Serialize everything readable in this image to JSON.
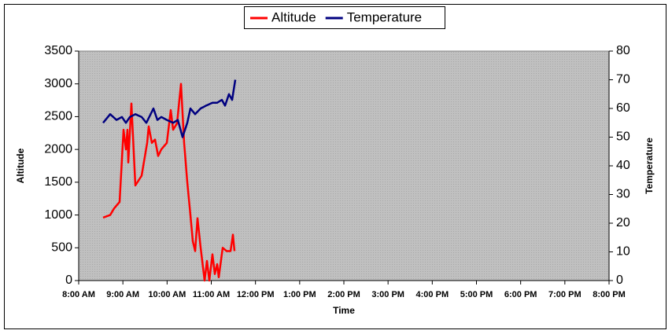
{
  "chart_data": {
    "type": "line",
    "x_label": "Time",
    "y_label": "Altitude",
    "y2_label": "Temperature",
    "xlim": [
      8,
      20
    ],
    "xticks": [
      {
        "value": 8,
        "label": "8:00 AM"
      },
      {
        "value": 9,
        "label": "9:00 AM"
      },
      {
        "value": 10,
        "label": "10:00 AM"
      },
      {
        "value": 11,
        "label": "11:00 AM"
      },
      {
        "value": 12,
        "label": "12:00 PM"
      },
      {
        "value": 13,
        "label": "1:00 PM"
      },
      {
        "value": 14,
        "label": "2:00 PM"
      },
      {
        "value": 15,
        "label": "3:00 PM"
      },
      {
        "value": 16,
        "label": "4:00 PM"
      },
      {
        "value": 17,
        "label": "5:00 PM"
      },
      {
        "value": 18,
        "label": "6:00 PM"
      },
      {
        "value": 19,
        "label": "7:00 PM"
      },
      {
        "value": 20,
        "label": "8:00 PM"
      }
    ],
    "ylim": [
      0,
      3500
    ],
    "yticks": [
      0,
      500,
      1000,
      1500,
      2000,
      2500,
      3000,
      3500
    ],
    "y2lim": [
      0,
      80
    ],
    "y2ticks": [
      0,
      10,
      20,
      30,
      40,
      50,
      60,
      70,
      80
    ],
    "legend": "top",
    "series": [
      {
        "name": "Altitude",
        "color": "#ff0000",
        "x": [
          8.552,
          8.712,
          8.801,
          8.926,
          9.015,
          9.068,
          9.104,
          9.122,
          9.193,
          9.282,
          9.424,
          9.549,
          9.584,
          9.656,
          9.727,
          9.798,
          9.869,
          9.994,
          10.083,
          10.136,
          10.225,
          10.314,
          10.386,
          10.457,
          10.528,
          10.581,
          10.635,
          10.688,
          10.759,
          10.848,
          10.902,
          10.955,
          11.027,
          11.08,
          11.133,
          11.169,
          11.258,
          11.347,
          11.436,
          11.489,
          11.525
        ],
        "values": [
          960,
          1000,
          1100,
          1200,
          2300,
          2000,
          2300,
          1800,
          2700,
          1450,
          1600,
          2100,
          2350,
          2100,
          2150,
          1900,
          2000,
          2100,
          2600,
          2300,
          2400,
          3000,
          2100,
          1500,
          1000,
          600,
          450,
          950,
          500,
          0,
          300,
          0,
          400,
          100,
          250,
          50,
          500,
          450,
          450,
          700,
          450
        ]
      },
      {
        "name": "Temperature",
        "color": "#000080",
        "axis": "y2",
        "x": [
          8.552,
          8.712,
          8.855,
          8.979,
          9.068,
          9.157,
          9.282,
          9.424,
          9.531,
          9.691,
          9.78,
          9.869,
          9.994,
          10.136,
          10.243,
          10.35,
          10.457,
          10.528,
          10.635,
          10.759,
          10.884,
          11.027,
          11.133,
          11.24,
          11.311,
          11.4,
          11.472,
          11.543
        ],
        "values": [
          55,
          58,
          56,
          57,
          55,
          57,
          58,
          57,
          55,
          60,
          56,
          57,
          56,
          55,
          56,
          50,
          55,
          60,
          58,
          60,
          61,
          62,
          62,
          63,
          61,
          65,
          63,
          70
        ]
      }
    ]
  }
}
